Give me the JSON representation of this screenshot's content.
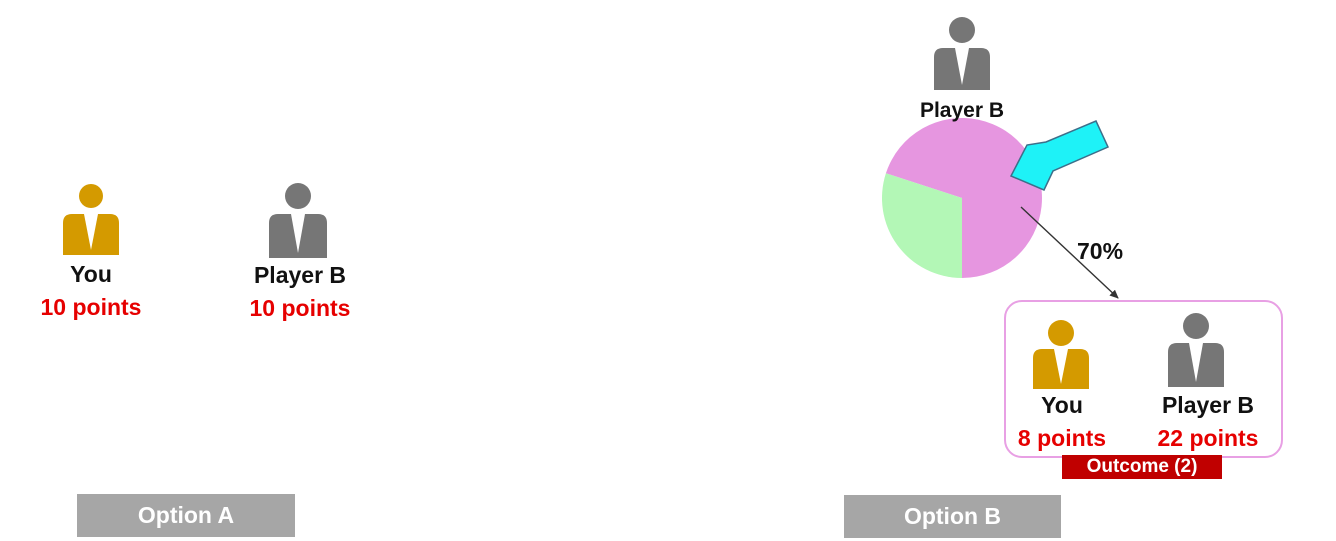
{
  "colors": {
    "you": "#d49a00",
    "player_b": "#767676",
    "points": "#e60000",
    "pie_large": "#e696e0",
    "pie_small": "#b3f7b6",
    "arrow_fill": "#1ef2f7",
    "outcome_border": "#e8a0e4",
    "outcome_tag": "#c00000",
    "option_button": "#a6a6a6"
  },
  "option_a": {
    "button_label": "Option A",
    "you": {
      "label": "You",
      "points": "10 points",
      "icon": "person-icon"
    },
    "player_b": {
      "label": "Player B",
      "points": "10 points",
      "icon": "person-icon"
    }
  },
  "option_b": {
    "button_label": "Option B",
    "chooser": {
      "label": "Player B",
      "icon": "person-icon"
    },
    "chart_data": {
      "type": "pie",
      "slices": [
        {
          "value": 70,
          "color": "#e696e0"
        },
        {
          "value": 30,
          "color": "#b3f7b6"
        }
      ]
    },
    "percent_label": "70%",
    "outcome": {
      "tag": "Outcome (2)",
      "you": {
        "label": "You",
        "points": "8 points",
        "icon": "person-icon"
      },
      "player_b": {
        "label": "Player B",
        "points": "22 points",
        "icon": "person-icon"
      }
    }
  }
}
